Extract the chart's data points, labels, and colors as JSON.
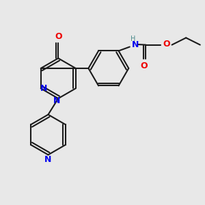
{
  "bg_color": "#e8e8e8",
  "bond_color": "#1a1a1a",
  "N_color": "#0000ee",
  "O_color": "#ee0000",
  "NH_color": "#4a8a8a",
  "line_width": 1.5,
  "figsize": [
    3.0,
    3.0
  ],
  "dpi": 100,
  "xlim": [
    0,
    10
  ],
  "ylim": [
    0,
    10
  ]
}
